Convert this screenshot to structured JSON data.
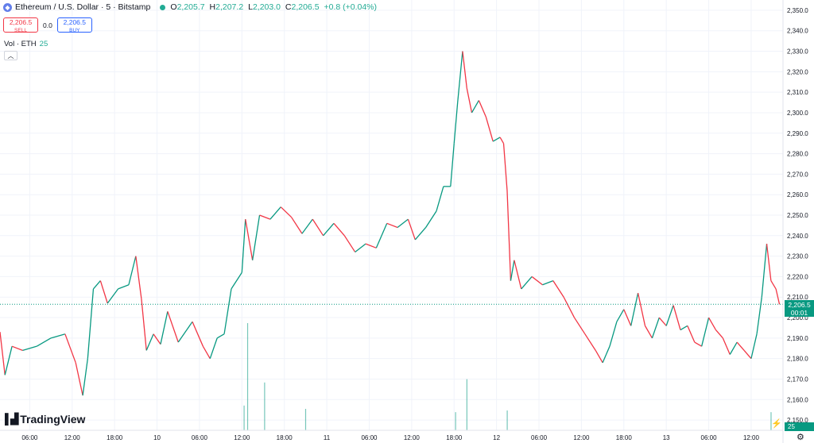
{
  "header": {
    "symbol_title": "Ethereum / U.S. Dollar · 5 · Bitstamp",
    "symbol_icon": "ethereum-icon",
    "ohlc": {
      "o_label": "O",
      "o": "2,205.7",
      "h_label": "H",
      "h": "2,207.2",
      "l_label": "L",
      "l": "2,203.0",
      "c_label": "C",
      "c": "2,206.5",
      "change": "+0.8 (+0.04%)"
    }
  },
  "trade": {
    "sell_price": "2,206.5",
    "sell_label": "SELL",
    "spread": "0.0",
    "buy_price": "2,206.5",
    "buy_label": "BUY"
  },
  "volume_indicator": {
    "label": "Vol · ETH",
    "value": "25"
  },
  "brand": "TradingView",
  "last_price": {
    "price": "2,206.5",
    "countdown": "00:01"
  },
  "volume_badge": "25",
  "colors": {
    "up": "#089981",
    "down": "#f23645",
    "grid": "#f0f3fa",
    "axis_text": "#131722"
  },
  "chart_data": {
    "type": "line",
    "title": "Ethereum / U.S. Dollar · 5 · Bitstamp",
    "xlabel": "",
    "ylabel": "",
    "ylim": [
      2145,
      2355
    ],
    "grid": true,
    "yticks": [
      "2,150.0",
      "2,160.0",
      "2,170.0",
      "2,180.0",
      "2,190.0",
      "2,200.0",
      "2,210.0",
      "2,220.0",
      "2,230.0",
      "2,240.0",
      "2,250.0",
      "2,260.0",
      "2,270.0",
      "2,280.0",
      "2,290.0",
      "2,300.0",
      "2,310.0",
      "2,320.0",
      "2,330.0",
      "2,340.0",
      "2,350.0"
    ],
    "yticks_values": [
      2150,
      2160,
      2170,
      2180,
      2190,
      2200,
      2210,
      2220,
      2230,
      2240,
      2250,
      2260,
      2270,
      2280,
      2290,
      2300,
      2310,
      2320,
      2330,
      2340,
      2350
    ],
    "xticks": [
      "06:00",
      "12:00",
      "18:00",
      "10",
      "06:00",
      "12:00",
      "18:00",
      "11",
      "06:00",
      "12:00",
      "18:00",
      "12",
      "06:00",
      "12:00",
      "18:00",
      "13",
      "06:00",
      "12:00"
    ],
    "xticks_hours": [
      6,
      12,
      18,
      24,
      30,
      36,
      42,
      48,
      54,
      60,
      66,
      72,
      78,
      84,
      90,
      96,
      102,
      108
    ],
    "x_range_hours": [
      1.8,
      112.5
    ],
    "price_series": [
      {
        "t": 1.8,
        "p": 2193
      },
      {
        "t": 2.5,
        "p": 2172
      },
      {
        "t": 3.5,
        "p": 2186
      },
      {
        "t": 5,
        "p": 2184
      },
      {
        "t": 7,
        "p": 2186
      },
      {
        "t": 9,
        "p": 2190
      },
      {
        "t": 11,
        "p": 2192
      },
      {
        "t": 12.5,
        "p": 2178
      },
      {
        "t": 13.5,
        "p": 2162
      },
      {
        "t": 14.2,
        "p": 2180
      },
      {
        "t": 15,
        "p": 2214
      },
      {
        "t": 16,
        "p": 2218
      },
      {
        "t": 17,
        "p": 2207
      },
      {
        "t": 18.5,
        "p": 2214
      },
      {
        "t": 20,
        "p": 2216
      },
      {
        "t": 21,
        "p": 2230
      },
      {
        "t": 21.8,
        "p": 2209
      },
      {
        "t": 22.5,
        "p": 2184
      },
      {
        "t": 23.5,
        "p": 2192
      },
      {
        "t": 24.5,
        "p": 2187
      },
      {
        "t": 25.5,
        "p": 2203
      },
      {
        "t": 27,
        "p": 2188
      },
      {
        "t": 29,
        "p": 2198
      },
      {
        "t": 30.5,
        "p": 2186
      },
      {
        "t": 31.5,
        "p": 2180
      },
      {
        "t": 32.5,
        "p": 2190
      },
      {
        "t": 33.5,
        "p": 2192
      },
      {
        "t": 34.5,
        "p": 2214
      },
      {
        "t": 36,
        "p": 2222
      },
      {
        "t": 36.5,
        "p": 2248
      },
      {
        "t": 37.5,
        "p": 2228
      },
      {
        "t": 38.5,
        "p": 2250
      },
      {
        "t": 40,
        "p": 2248
      },
      {
        "t": 41.5,
        "p": 2254
      },
      {
        "t": 43,
        "p": 2249
      },
      {
        "t": 44.5,
        "p": 2241
      },
      {
        "t": 46,
        "p": 2248
      },
      {
        "t": 47.5,
        "p": 2240
      },
      {
        "t": 49,
        "p": 2246
      },
      {
        "t": 50.5,
        "p": 2240
      },
      {
        "t": 52,
        "p": 2232
      },
      {
        "t": 53.5,
        "p": 2236
      },
      {
        "t": 55,
        "p": 2234
      },
      {
        "t": 56.5,
        "p": 2246
      },
      {
        "t": 58,
        "p": 2244
      },
      {
        "t": 59.5,
        "p": 2248
      },
      {
        "t": 60.5,
        "p": 2238
      },
      {
        "t": 62,
        "p": 2244
      },
      {
        "t": 63.5,
        "p": 2252
      },
      {
        "t": 64.5,
        "p": 2264
      },
      {
        "t": 65.5,
        "p": 2264
      },
      {
        "t": 66,
        "p": 2285
      },
      {
        "t": 66.5,
        "p": 2305
      },
      {
        "t": 67.2,
        "p": 2330
      },
      {
        "t": 67.8,
        "p": 2312
      },
      {
        "t": 68.5,
        "p": 2300
      },
      {
        "t": 69.5,
        "p": 2306
      },
      {
        "t": 70.5,
        "p": 2298
      },
      {
        "t": 71.5,
        "p": 2286
      },
      {
        "t": 72.5,
        "p": 2288
      },
      {
        "t": 73,
        "p": 2285
      },
      {
        "t": 73.5,
        "p": 2262
      },
      {
        "t": 74,
        "p": 2218
      },
      {
        "t": 74.5,
        "p": 2228
      },
      {
        "t": 75.5,
        "p": 2214
      },
      {
        "t": 77,
        "p": 2220
      },
      {
        "t": 78.5,
        "p": 2216
      },
      {
        "t": 80,
        "p": 2218
      },
      {
        "t": 81.5,
        "p": 2210
      },
      {
        "t": 83,
        "p": 2200
      },
      {
        "t": 84.5,
        "p": 2192
      },
      {
        "t": 86,
        "p": 2184
      },
      {
        "t": 87,
        "p": 2178
      },
      {
        "t": 88,
        "p": 2186
      },
      {
        "t": 89,
        "p": 2198
      },
      {
        "t": 90,
        "p": 2204
      },
      {
        "t": 91,
        "p": 2196
      },
      {
        "t": 92,
        "p": 2212
      },
      {
        "t": 93,
        "p": 2196
      },
      {
        "t": 94,
        "p": 2190
      },
      {
        "t": 95,
        "p": 2200
      },
      {
        "t": 96,
        "p": 2196
      },
      {
        "t": 97,
        "p": 2206
      },
      {
        "t": 98,
        "p": 2194
      },
      {
        "t": 99,
        "p": 2196
      },
      {
        "t": 100,
        "p": 2188
      },
      {
        "t": 101,
        "p": 2186
      },
      {
        "t": 102,
        "p": 2200
      },
      {
        "t": 103,
        "p": 2194
      },
      {
        "t": 104,
        "p": 2190
      },
      {
        "t": 105,
        "p": 2182
      },
      {
        "t": 106,
        "p": 2188
      },
      {
        "t": 107,
        "p": 2184
      },
      {
        "t": 108,
        "p": 2180
      },
      {
        "t": 108.8,
        "p": 2192
      },
      {
        "t": 109.5,
        "p": 2210
      },
      {
        "t": 110.2,
        "p": 2236
      },
      {
        "t": 110.8,
        "p": 2218
      },
      {
        "t": 111.5,
        "p": 2214
      },
      {
        "t": 112,
        "p": 2206.5
      }
    ],
    "volume_spikes": [
      {
        "t": 36.3,
        "v": 30
      },
      {
        "t": 36.8,
        "v": 130
      },
      {
        "t": 39.2,
        "v": 58
      },
      {
        "t": 45,
        "v": 26
      },
      {
        "t": 66.2,
        "v": 22
      },
      {
        "t": 67.8,
        "v": 62
      },
      {
        "t": 73.5,
        "v": 24
      },
      {
        "t": 110.8,
        "v": 22
      }
    ],
    "last_price": 2206.5
  }
}
